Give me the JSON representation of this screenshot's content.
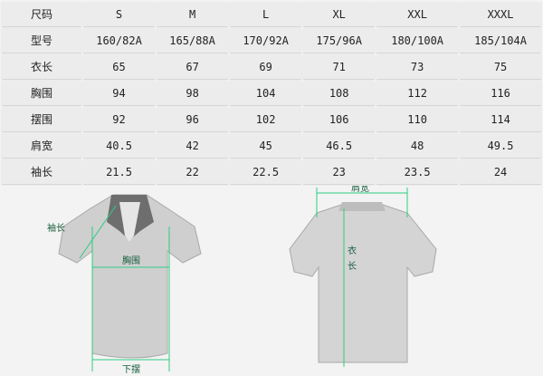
{
  "table": {
    "rows": [
      {
        "label": "尺码",
        "values": [
          "S",
          "M",
          "L",
          "XL",
          "XXL",
          "XXXL"
        ]
      },
      {
        "label": "型号",
        "values": [
          "160/82A",
          "165/88A",
          "170/92A",
          "175/96A",
          "180/100A",
          "185/104A"
        ]
      },
      {
        "label": "衣长",
        "values": [
          "65",
          "67",
          "69",
          "71",
          "73",
          "75"
        ]
      },
      {
        "label": "胸围",
        "values": [
          "94",
          "98",
          "104",
          "108",
          "112",
          "116"
        ]
      },
      {
        "label": "摆围",
        "values": [
          "92",
          "96",
          "102",
          "106",
          "110",
          "114"
        ]
      },
      {
        "label": "肩宽",
        "values": [
          "40.5",
          "42",
          "45",
          "46.5",
          "48",
          "49.5"
        ]
      },
      {
        "label": "袖长",
        "values": [
          "21.5",
          "22",
          "22.5",
          "23",
          "23.5",
          "24"
        ]
      }
    ]
  },
  "front_diagram": {
    "sleeve_label": "袖长",
    "chest_label": "胸围",
    "hem_label": "下摆"
  },
  "back_diagram": {
    "shoulder_label": "肩宽",
    "length_label_1": "衣",
    "length_label_2": "长"
  },
  "colors": {
    "measure_line": "#2ecc80",
    "label_text": "#1a6040"
  }
}
